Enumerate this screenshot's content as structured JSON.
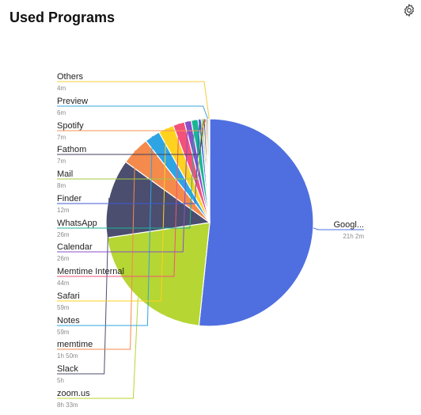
{
  "header": {
    "title": "Used Programs",
    "settings_icon": "gear-icon"
  },
  "chart_data": {
    "type": "pie",
    "title": "Used Programs",
    "slices": [
      {
        "label": "Googl...",
        "value_text": "21h 2m",
        "minutes": 1262,
        "color": "#4f6fe0"
      },
      {
        "label": "zoom.us",
        "value_text": "8h 33m",
        "minutes": 513,
        "color": "#b5d633"
      },
      {
        "label": "Slack",
        "value_text": "5h",
        "minutes": 300,
        "color": "#4b4e6e"
      },
      {
        "label": "memtime",
        "value_text": "1h 50m",
        "minutes": 110,
        "color": "#f48a4c"
      },
      {
        "label": "Notes",
        "value_text": "59m",
        "minutes": 59,
        "color": "#2fa4e3"
      },
      {
        "label": "Safari",
        "value_text": "59m",
        "minutes": 59,
        "color": "#ffd21f"
      },
      {
        "label": "Memtime Internal",
        "value_text": "44m",
        "minutes": 44,
        "color": "#f2527a"
      },
      {
        "label": "Calendar",
        "value_text": "26m",
        "minutes": 26,
        "color": "#8a4fc9"
      },
      {
        "label": "WhatsApp",
        "value_text": "26m",
        "minutes": 26,
        "color": "#1bb595"
      },
      {
        "label": "Finder",
        "value_text": "12m",
        "minutes": 12,
        "color": "#3d5bd6"
      },
      {
        "label": "Mail",
        "value_text": "8m",
        "minutes": 8,
        "color": "#a3c940"
      },
      {
        "label": "Fathom",
        "value_text": "7m",
        "minutes": 7,
        "color": "#3f3f5e"
      },
      {
        "label": "Spotify",
        "value_text": "7m",
        "minutes": 7,
        "color": "#f39356"
      },
      {
        "label": "Preview",
        "value_text": "6m",
        "minutes": 6,
        "color": "#3fa6d9"
      },
      {
        "label": "Others",
        "value_text": "4m",
        "minutes": 4,
        "color": "#f5cc3c"
      }
    ]
  }
}
